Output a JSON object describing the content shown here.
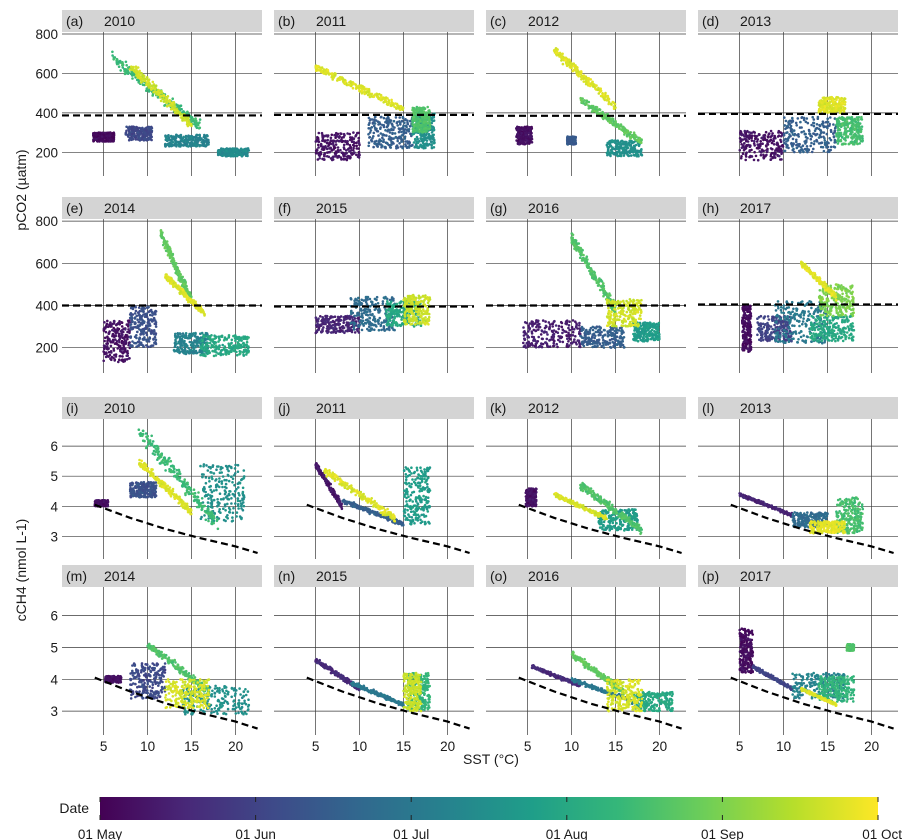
{
  "chart_data": {
    "type": "scatter",
    "facet_grid": {
      "rows": 4,
      "cols": 4
    },
    "x_label": "SST (°C)",
    "x_ticks": [
      5,
      10,
      15,
      20
    ],
    "xlim": [
      3,
      23
    ],
    "pco2_ylabel": "pCO2 (µatm)",
    "pco2_ticks": [
      200,
      400,
      600,
      800
    ],
    "pco2_ylim": [
      80,
      810
    ],
    "ch4_ylabel": "cCH4 (nmol L-1)",
    "ch4_ticks": [
      3,
      4,
      5,
      6
    ],
    "ch4_ylim": [
      2.25,
      6.9
    ],
    "colorbar": {
      "title": "Date",
      "labels": [
        "01 May",
        "01 Jun",
        "01 Jul",
        "01 Aug",
        "01 Sep",
        "01 Oct"
      ],
      "colors": [
        "#440154",
        "#482878",
        "#3e4a89",
        "#31688e",
        "#26828e",
        "#1f9e89",
        "#35b779",
        "#6ece58",
        "#b5de2b",
        "#fde725"
      ]
    },
    "pco2_atm_reference": [
      {
        "x": 4,
        "y": 385
      },
      {
        "x": 22,
        "y": 385
      }
    ],
    "ch4_equilibrium_reference": [
      {
        "x": 4,
        "y": 4.05
      },
      {
        "x": 8,
        "y": 3.62
      },
      {
        "x": 12,
        "y": 3.25
      },
      {
        "x": 16,
        "y": 2.94
      },
      {
        "x": 20,
        "y": 2.67
      },
      {
        "x": 22.5,
        "y": 2.45
      }
    ],
    "panels": [
      {
        "tag": "(a)",
        "year": "2010",
        "var": "pco2",
        "atm": 387,
        "clusters": [
          {
            "date": 0.03,
            "x": [
              3.8,
              6.2
            ],
            "y": [
              255,
              300
            ]
          },
          {
            "date": 0.22,
            "x": [
              7.5,
              10.5
            ],
            "y": [
              260,
              330
            ]
          },
          {
            "date": 0.45,
            "x": [
              12,
              17
            ],
            "y": [
              230,
              290
            ]
          },
          {
            "date": 0.48,
            "x": [
              18,
              21.5
            ],
            "y": [
              180,
              220
            ]
          },
          {
            "date": 0.68,
            "x": [
              6,
              16
            ],
            "y": [
              330,
              680
            ],
            "trend": true
          },
          {
            "date": 0.93,
            "x": [
              8,
              15
            ],
            "y": [
              340,
              640
            ],
            "trend": true
          }
        ]
      },
      {
        "tag": "(b)",
        "year": "2011",
        "var": "pco2",
        "atm": 390,
        "clusters": [
          {
            "date": 0.05,
            "x": [
              5,
              10
            ],
            "y": [
              160,
              300
            ]
          },
          {
            "date": 0.3,
            "x": [
              11,
              16
            ],
            "y": [
              220,
              380
            ]
          },
          {
            "date": 0.5,
            "x": [
              16,
              18.5
            ],
            "y": [
              220,
              400
            ]
          },
          {
            "date": 0.72,
            "x": [
              16,
              18
            ],
            "y": [
              300,
              430
            ]
          },
          {
            "date": 0.95,
            "x": [
              5,
              15
            ],
            "y": [
              420,
              630
            ],
            "trend": true
          }
        ]
      },
      {
        "tag": "(c)",
        "year": "2012",
        "var": "pco2",
        "atm": 385,
        "clusters": [
          {
            "date": 0.04,
            "x": [
              3.7,
              5.5
            ],
            "y": [
              240,
              330
            ]
          },
          {
            "date": 0.28,
            "x": [
              9.5,
              10.5
            ],
            "y": [
              240,
              280
            ]
          },
          {
            "date": 0.5,
            "x": [
              14,
              18
            ],
            "y": [
              180,
              260
            ]
          },
          {
            "date": 0.75,
            "x": [
              11,
              18
            ],
            "y": [
              250,
              470
            ],
            "trend": true
          },
          {
            "date": 0.95,
            "x": [
              8,
              15
            ],
            "y": [
              430,
              720
            ],
            "trend": true
          }
        ]
      },
      {
        "tag": "(d)",
        "year": "2013",
        "var": "pco2",
        "atm": 395,
        "clusters": [
          {
            "date": 0.05,
            "x": [
              5,
              10
            ],
            "y": [
              160,
              310
            ]
          },
          {
            "date": 0.3,
            "x": [
              10,
              16
            ],
            "y": [
              200,
              380
            ]
          },
          {
            "date": 0.7,
            "x": [
              16,
              19
            ],
            "y": [
              240,
              380
            ]
          },
          {
            "date": 0.95,
            "x": [
              14,
              17
            ],
            "y": [
              400,
              480
            ]
          }
        ]
      },
      {
        "tag": "(e)",
        "year": "2014",
        "var": "pco2",
        "atm": 400,
        "clusters": [
          {
            "date": 0.05,
            "x": [
              5,
              8
            ],
            "y": [
              130,
              330
            ]
          },
          {
            "date": 0.25,
            "x": [
              8,
              11
            ],
            "y": [
              200,
              400
            ]
          },
          {
            "date": 0.45,
            "x": [
              13,
              17
            ],
            "y": [
              170,
              270
            ]
          },
          {
            "date": 0.6,
            "x": [
              16,
              21.5
            ],
            "y": [
              160,
              260
            ]
          },
          {
            "date": 0.75,
            "x": [
              11.5,
              15
            ],
            "y": [
              420,
              740
            ],
            "trend": true
          },
          {
            "date": 0.95,
            "x": [
              12,
              16.5
            ],
            "y": [
              360,
              540
            ],
            "trend": true
          }
        ]
      },
      {
        "tag": "(f)",
        "year": "2015",
        "var": "pco2",
        "atm": 395,
        "clusters": [
          {
            "date": 0.1,
            "x": [
              5,
              10
            ],
            "y": [
              270,
              350
            ]
          },
          {
            "date": 0.35,
            "x": [
              9,
              14
            ],
            "y": [
              280,
              440
            ]
          },
          {
            "date": 0.6,
            "x": [
              13,
              17
            ],
            "y": [
              300,
              420
            ]
          },
          {
            "date": 0.92,
            "x": [
              15,
              18
            ],
            "y": [
              310,
              450
            ]
          }
        ]
      },
      {
        "tag": "(g)",
        "year": "2016",
        "var": "pco2",
        "atm": 400,
        "clusters": [
          {
            "date": 0.08,
            "x": [
              4.5,
              11
            ],
            "y": [
              200,
              330
            ]
          },
          {
            "date": 0.3,
            "x": [
              11,
              16
            ],
            "y": [
              200,
              300
            ]
          },
          {
            "date": 0.55,
            "x": [
              17,
              20
            ],
            "y": [
              230,
              320
            ]
          },
          {
            "date": 0.72,
            "x": [
              10,
              15
            ],
            "y": [
              380,
              720
            ],
            "trend": true
          },
          {
            "date": 0.93,
            "x": [
              14,
              18
            ],
            "y": [
              300,
              430
            ]
          }
        ]
      },
      {
        "tag": "(h)",
        "year": "2017",
        "var": "pco2",
        "atm": 405,
        "clusters": [
          {
            "date": 0.03,
            "x": [
              5.3,
              6.3
            ],
            "y": [
              180,
              400
            ]
          },
          {
            "date": 0.2,
            "x": [
              7,
              11
            ],
            "y": [
              230,
              350
            ]
          },
          {
            "date": 0.4,
            "x": [
              9,
              15
            ],
            "y": [
              220,
              420
            ]
          },
          {
            "date": 0.6,
            "x": [
              13,
              18
            ],
            "y": [
              230,
              350
            ]
          },
          {
            "date": 0.8,
            "x": [
              14,
              18
            ],
            "y": [
              350,
              500
            ]
          },
          {
            "date": 0.96,
            "x": [
              12,
              16
            ],
            "y": [
              440,
              600
            ],
            "trend": true
          }
        ]
      },
      {
        "tag": "(i)",
        "year": "2010",
        "var": "ch4",
        "clusters": [
          {
            "date": 0.04,
            "x": [
              4,
              5.5
            ],
            "y": [
              4.0,
              4.2
            ]
          },
          {
            "date": 0.25,
            "x": [
              8,
              11
            ],
            "y": [
              4.3,
              4.8
            ]
          },
          {
            "date": 0.5,
            "x": [
              16,
              21
            ],
            "y": [
              3.5,
              5.4
            ]
          },
          {
            "date": 0.68,
            "x": [
              9,
              18
            ],
            "y": [
              3.4,
              6.5
            ],
            "trend": true
          },
          {
            "date": 0.95,
            "x": [
              9,
              15
            ],
            "y": [
              3.8,
              5.5
            ],
            "trend": true
          }
        ]
      },
      {
        "tag": "(j)",
        "year": "2011",
        "var": "ch4",
        "clusters": [
          {
            "date": 0.06,
            "x": [
              5,
              8
            ],
            "y": [
              4.0,
              5.4
            ],
            "trend": true
          },
          {
            "date": 0.3,
            "x": [
              8,
              15
            ],
            "y": [
              3.4,
              4.2
            ],
            "trend": true
          },
          {
            "date": 0.55,
            "x": [
              15,
              18
            ],
            "y": [
              3.4,
              5.3
            ]
          },
          {
            "date": 0.95,
            "x": [
              6,
              14
            ],
            "y": [
              3.6,
              5.2
            ],
            "trend": true
          }
        ]
      },
      {
        "tag": "(k)",
        "year": "2012",
        "var": "ch4",
        "clusters": [
          {
            "date": 0.05,
            "x": [
              4.8,
              6
            ],
            "y": [
              4.0,
              4.6
            ]
          },
          {
            "date": 0.55,
            "x": [
              13,
              17.5
            ],
            "y": [
              3.2,
              3.9
            ]
          },
          {
            "date": 0.72,
            "x": [
              11,
              18
            ],
            "y": [
              3.2,
              4.7
            ],
            "trend": true
          },
          {
            "date": 0.94,
            "x": [
              8,
              14
            ],
            "y": [
              3.6,
              4.4
            ],
            "trend": true
          }
        ]
      },
      {
        "tag": "(l)",
        "year": "2013",
        "var": "ch4",
        "clusters": [
          {
            "date": 0.1,
            "x": [
              5,
              11
            ],
            "y": [
              3.7,
              4.4
            ],
            "trend": true
          },
          {
            "date": 0.35,
            "x": [
              11,
              15
            ],
            "y": [
              3.3,
              3.8
            ]
          },
          {
            "date": 0.7,
            "x": [
              16,
              19
            ],
            "y": [
              3.1,
              4.3
            ]
          },
          {
            "date": 0.96,
            "x": [
              13,
              17
            ],
            "y": [
              3.1,
              3.5
            ]
          }
        ]
      },
      {
        "tag": "(m)",
        "year": "2014",
        "var": "ch4",
        "clusters": [
          {
            "date": 0.05,
            "x": [
              5.2,
              7
            ],
            "y": [
              3.9,
              4.1
            ]
          },
          {
            "date": 0.22,
            "x": [
              8,
              12
            ],
            "y": [
              3.4,
              4.5
            ]
          },
          {
            "date": 0.5,
            "x": [
              14,
              21.5
            ],
            "y": [
              2.9,
              3.8
            ]
          },
          {
            "date": 0.72,
            "x": [
              10,
              17
            ],
            "y": [
              3.6,
              5.1
            ],
            "trend": true
          },
          {
            "date": 0.94,
            "x": [
              12,
              17
            ],
            "y": [
              3.1,
              4.0
            ]
          }
        ]
      },
      {
        "tag": "(n)",
        "year": "2015",
        "var": "ch4",
        "clusters": [
          {
            "date": 0.12,
            "x": [
              5,
              10
            ],
            "y": [
              3.7,
              4.6
            ],
            "trend": true
          },
          {
            "date": 0.4,
            "x": [
              9,
              15
            ],
            "y": [
              3.2,
              3.9
            ],
            "trend": true
          },
          {
            "date": 0.65,
            "x": [
              15.5,
              18
            ],
            "y": [
              3.0,
              4.2
            ]
          },
          {
            "date": 0.92,
            "x": [
              15,
              17
            ],
            "y": [
              3.0,
              4.2
            ]
          }
        ]
      },
      {
        "tag": "(o)",
        "year": "2016",
        "var": "ch4",
        "clusters": [
          {
            "date": 0.12,
            "x": [
              5.5,
              11
            ],
            "y": [
              3.8,
              4.4
            ],
            "trend": true
          },
          {
            "date": 0.4,
            "x": [
              10,
              17
            ],
            "y": [
              3.3,
              4.0
            ],
            "trend": true
          },
          {
            "date": 0.6,
            "x": [
              17,
              21.5
            ],
            "y": [
              3.0,
              3.6
            ]
          },
          {
            "date": 0.75,
            "x": [
              10,
              16
            ],
            "y": [
              3.6,
              4.8
            ],
            "trend": true
          },
          {
            "date": 0.94,
            "x": [
              14,
              18
            ],
            "y": [
              3.0,
              4.0
            ]
          }
        ]
      },
      {
        "tag": "(p)",
        "year": "2017",
        "var": "ch4",
        "clusters": [
          {
            "date": 0.03,
            "x": [
              5,
              6.5
            ],
            "y": [
              4.2,
              5.6
            ]
          },
          {
            "date": 0.2,
            "x": [
              6.5,
              11
            ],
            "y": [
              3.7,
              4.4
            ],
            "trend": true
          },
          {
            "date": 0.45,
            "x": [
              11,
              17
            ],
            "y": [
              3.4,
              4.2
            ]
          },
          {
            "date": 0.65,
            "x": [
              14,
              18
            ],
            "y": [
              3.3,
              4.1
            ]
          },
          {
            "date": 0.72,
            "x": [
              17.2,
              18
            ],
            "y": [
              4.9,
              5.1
            ]
          },
          {
            "date": 0.95,
            "x": [
              12,
              16
            ],
            "y": [
              3.2,
              3.7
            ],
            "trend": true
          }
        ]
      }
    ]
  }
}
